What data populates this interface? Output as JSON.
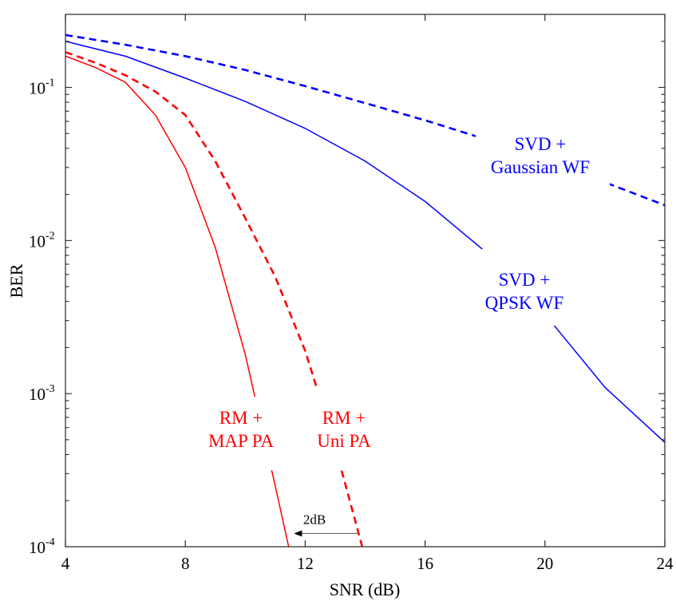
{
  "chart_data": {
    "type": "line",
    "title": "",
    "xlabel": "SNR (dB)",
    "ylabel": "BER",
    "xlim": [
      4,
      24
    ],
    "ylim": [
      0.0001,
      0.3
    ],
    "yscale": "log",
    "grid": false,
    "xticks": [
      4,
      8,
      12,
      16,
      20,
      24
    ],
    "xtick_labels": [
      "4",
      "8",
      "12",
      "16",
      "20",
      "24"
    ],
    "yticks": [
      0.0001,
      0.001,
      0.01,
      0.1
    ],
    "ytick_labels": [
      {
        "base": "10",
        "exp": "-4"
      },
      {
        "base": "10",
        "exp": "-3"
      },
      {
        "base": "10",
        "exp": "-2"
      },
      {
        "base": "10",
        "exp": "-1"
      }
    ],
    "series": [
      {
        "name": "SVD + Gaussian WF",
        "color": "#0000ff",
        "dash": "dashed",
        "x": [
          4,
          6,
          8,
          10,
          12,
          14,
          16,
          18,
          20,
          22,
          24
        ],
        "y": [
          0.22,
          0.19,
          0.16,
          0.13,
          0.102,
          0.079,
          0.061,
          0.046,
          0.034,
          0.024,
          0.017
        ]
      },
      {
        "name": "SVD + QPSK WF",
        "color": "#0000ff",
        "dash": "solid",
        "x": [
          4,
          6,
          8,
          10,
          12,
          14,
          16,
          18,
          20,
          22,
          24
        ],
        "y": [
          0.2,
          0.16,
          0.115,
          0.081,
          0.054,
          0.033,
          0.018,
          0.0085,
          0.0033,
          0.0011,
          0.00048
        ]
      },
      {
        "name": "RM + Uni PA",
        "color": "#ff0000",
        "dash": "dashed",
        "x": [
          4,
          5,
          6,
          7,
          8,
          9,
          10,
          11,
          12,
          13,
          14
        ],
        "y": [
          0.17,
          0.145,
          0.12,
          0.094,
          0.066,
          0.033,
          0.014,
          0.0058,
          0.0019,
          0.00045,
          8.5e-05
        ]
      },
      {
        "name": "RM + MAP PA",
        "color": "#ff0000",
        "dash": "solid",
        "x": [
          4,
          5,
          6,
          7,
          8,
          9,
          10,
          11,
          11.5
        ],
        "y": [
          0.16,
          0.135,
          0.108,
          0.066,
          0.03,
          0.009,
          0.0018,
          0.00025,
          9e-05
        ]
      }
    ],
    "annotations": [
      {
        "lines": [
          "SVD +",
          "Gaussian WF"
        ],
        "color": "#0000ff"
      },
      {
        "lines": [
          "SVD +",
          "QPSK WF"
        ],
        "color": "#0000ff"
      },
      {
        "lines": [
          "RM +",
          "MAP PA"
        ],
        "color": "#ff0000"
      },
      {
        "lines": [
          "RM +",
          "Uni PA"
        ],
        "color": "#ff0000"
      },
      {
        "lines": [
          "2dB"
        ],
        "color": "#000000",
        "arrow_from_x": 13.8,
        "arrow_to_x": 11.6,
        "arrow_y": 0.000122
      }
    ]
  }
}
